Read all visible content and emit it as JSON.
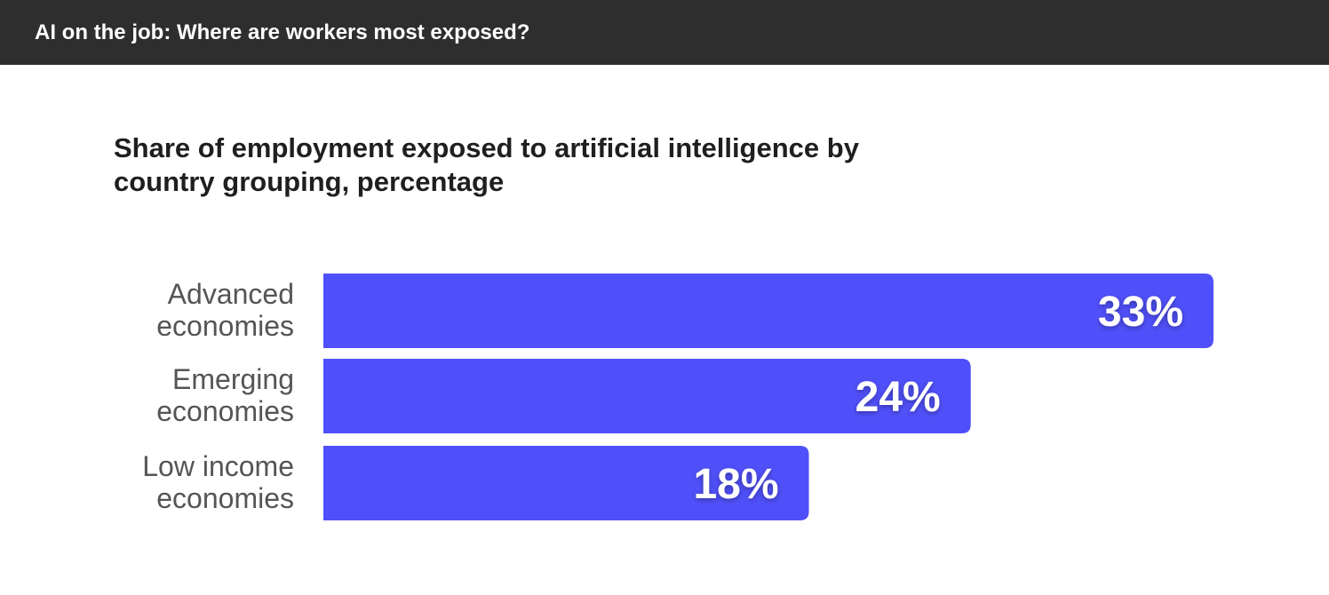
{
  "header": {
    "title": "AI on the job: Where are workers most exposed?"
  },
  "chart_data": {
    "type": "bar",
    "orientation": "horizontal",
    "title": "Share of employment exposed to artificial intelligence by country grouping, percentage",
    "categories": [
      [
        "Advanced",
        "economies"
      ],
      [
        "Emerging",
        "economies"
      ],
      [
        "Low income",
        "economies"
      ]
    ],
    "values": [
      33,
      24,
      18
    ],
    "value_labels": [
      "33%",
      "24%",
      "18%"
    ],
    "xlim": [
      0,
      33
    ],
    "bar_color": "#5050fa",
    "grid": false,
    "legend": "none"
  },
  "colors": {
    "header_background": "#2e2e2e",
    "bar": "#5050fa",
    "category_label": "#555555",
    "value_label": "#ffffff"
  }
}
